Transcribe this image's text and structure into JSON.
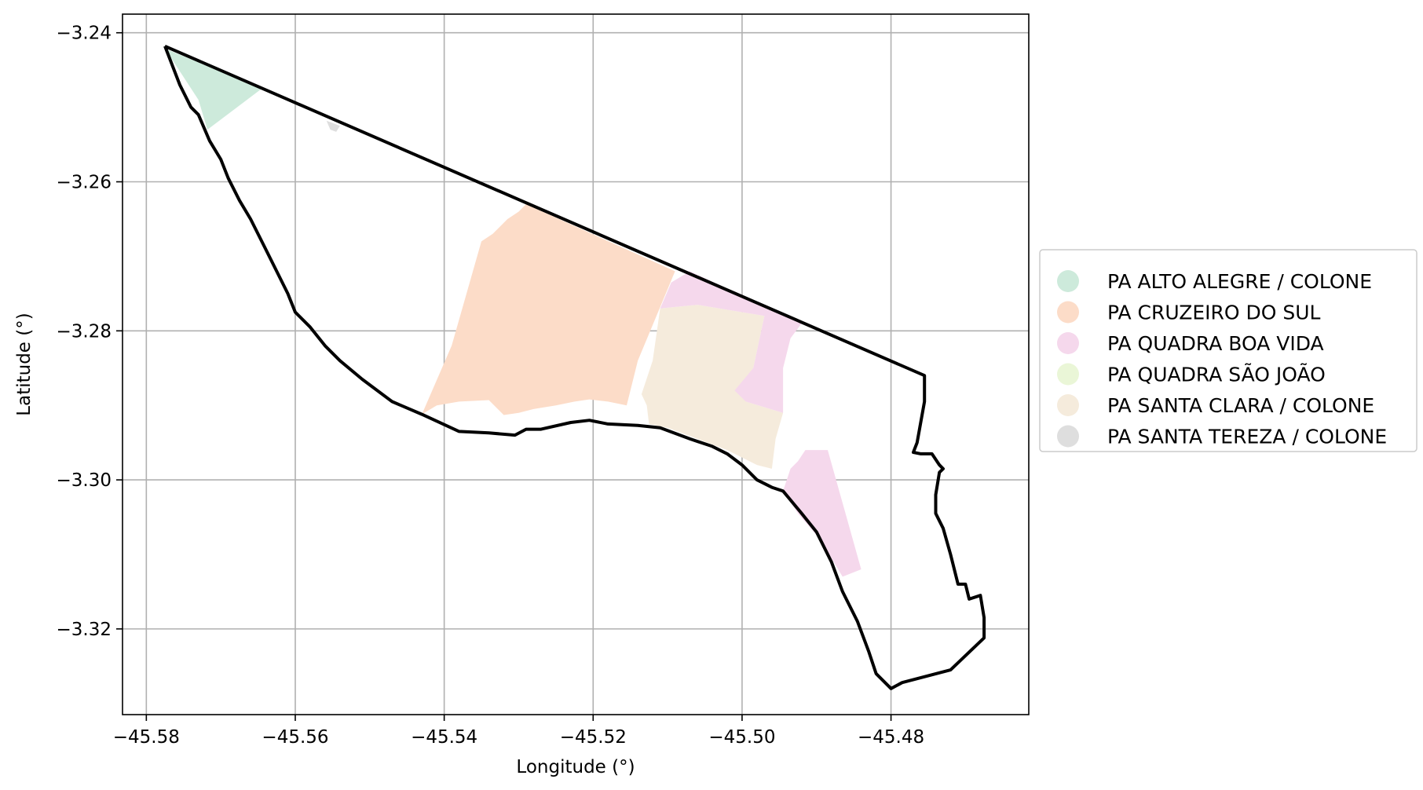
{
  "chart_data": {
    "type": "map",
    "title": "",
    "xlabel": "Longitude (°)",
    "ylabel": "Latitude (°)",
    "xlim": [
      -45.5832,
      -45.4615
    ],
    "ylim": [
      -3.3315,
      -3.2375
    ],
    "xticks": [
      -45.58,
      -45.56,
      -45.54,
      -45.52,
      -45.5,
      -45.48
    ],
    "xtick_labels": [
      "−45.58",
      "−45.56",
      "−45.54",
      "−45.52",
      "−45.50",
      "−45.48"
    ],
    "yticks": [
      -3.24,
      -3.26,
      -3.28,
      -3.3,
      -3.32
    ],
    "ytick_labels": [
      "−3.24",
      "−3.26",
      "−3.28",
      "−3.30",
      "−3.32"
    ],
    "grid": true,
    "legend": {
      "placement": "center-right outside",
      "entries": [
        {
          "name": "PA ALTO ALEGRE / COLONE",
          "color": "#cdeadb"
        },
        {
          "name": "PA CRUZEIRO DO SUL",
          "color": "#fcdcc8"
        },
        {
          "name": "PA QUADRA BOA VIDA",
          "color": "#f5d8ec"
        },
        {
          "name": "PA QUADRA SÃO JOÃO",
          "color": "#eaf6d7"
        },
        {
          "name": "PA SANTA CLARA / COLONE",
          "color": "#f5ebdc"
        },
        {
          "name": "PA SANTA TEREZA / COLONE",
          "color": "#dedede"
        }
      ]
    },
    "regions": [
      {
        "name": "PA ALTO ALEGRE / COLONE",
        "color": "#cdeadb",
        "coords": [
          [
            -45.5775,
            -3.2421
          ],
          [
            -45.5645,
            -3.2475
          ],
          [
            -45.5718,
            -3.253
          ],
          [
            -45.573,
            -3.249
          ]
        ]
      },
      {
        "name": "PA SANTA TEREZA / COLONE",
        "color": "#dedede",
        "coords": [
          [
            -45.5558,
            -3.2518
          ],
          [
            -45.554,
            -3.2525
          ],
          [
            -45.5545,
            -3.2533
          ],
          [
            -45.5553,
            -3.253
          ]
        ]
      },
      {
        "name": "PA CRUZEIRO DO SUL",
        "color": "#fcdcc8",
        "coords": [
          [
            -45.529,
            -3.263
          ],
          [
            -45.509,
            -3.272
          ],
          [
            -45.514,
            -3.284
          ],
          [
            -45.5155,
            -3.29
          ],
          [
            -45.518,
            -3.2895
          ],
          [
            -45.5205,
            -3.2892
          ],
          [
            -45.5225,
            -3.2895
          ],
          [
            -45.525,
            -3.29
          ],
          [
            -45.528,
            -3.2905
          ],
          [
            -45.53,
            -3.291
          ],
          [
            -45.532,
            -3.2913
          ],
          [
            -45.534,
            -3.2893
          ],
          [
            -45.538,
            -3.2895
          ],
          [
            -45.541,
            -3.29
          ],
          [
            -45.543,
            -3.2912
          ],
          [
            -45.539,
            -3.282
          ],
          [
            -45.535,
            -3.268
          ],
          [
            -45.5335,
            -3.267
          ],
          [
            -45.5315,
            -3.265
          ],
          [
            -45.53,
            -3.264
          ]
        ]
      },
      {
        "name": "PA SANTA CLARA / COLONE",
        "color": "#f5ebdc",
        "coords": [
          [
            -45.511,
            -3.277
          ],
          [
            -45.506,
            -3.2765
          ],
          [
            -45.497,
            -3.278
          ],
          [
            -45.4985,
            -3.285
          ],
          [
            -45.4995,
            -3.2895
          ],
          [
            -45.4945,
            -3.291
          ],
          [
            -45.4955,
            -3.2945
          ],
          [
            -45.496,
            -3.2985
          ],
          [
            -45.498,
            -3.298
          ],
          [
            -45.502,
            -3.296
          ],
          [
            -45.506,
            -3.2945
          ],
          [
            -45.51,
            -3.293
          ],
          [
            -45.5125,
            -3.2925
          ],
          [
            -45.5128,
            -3.29
          ],
          [
            -45.5135,
            -3.2885
          ],
          [
            -45.512,
            -3.284
          ]
        ]
      },
      {
        "name": "PA QUADRA BOA VIDA",
        "color": "#f5d8ec",
        "coords": [
          [
            -45.507,
            -3.272
          ],
          [
            -45.492,
            -3.279
          ],
          [
            -45.4935,
            -3.281
          ],
          [
            -45.4945,
            -3.285
          ],
          [
            -45.4945,
            -3.291
          ],
          [
            -45.4995,
            -3.2895
          ],
          [
            -45.501,
            -3.288
          ],
          [
            -45.4985,
            -3.285
          ],
          [
            -45.497,
            -3.278
          ],
          [
            -45.506,
            -3.2765
          ],
          [
            -45.511,
            -3.277
          ],
          [
            -45.5095,
            -3.2735
          ]
        ]
      },
      {
        "name": "PA QUADRA BOA VIDA",
        "color": "#f5d8ec",
        "coords": [
          [
            -45.4915,
            -3.296
          ],
          [
            -45.4885,
            -3.296
          ],
          [
            -45.484,
            -3.312
          ],
          [
            -45.4865,
            -3.313
          ],
          [
            -45.4895,
            -3.308
          ],
          [
            -45.4925,
            -3.3045
          ],
          [
            -45.4945,
            -3.3015
          ],
          [
            -45.4935,
            -3.2985
          ],
          [
            -45.4925,
            -3.2975
          ]
        ]
      }
    ],
    "boundary": {
      "color": "#000000",
      "coords": [
        [
          -45.5775,
          -3.2418
        ],
        [
          -45.5755,
          -3.247
        ],
        [
          -45.574,
          -3.25
        ],
        [
          -45.573,
          -3.251
        ],
        [
          -45.5715,
          -3.2545
        ],
        [
          -45.57,
          -3.257
        ],
        [
          -45.569,
          -3.2595
        ],
        [
          -45.5675,
          -3.2625
        ],
        [
          -45.566,
          -3.265
        ],
        [
          -45.564,
          -3.269
        ],
        [
          -45.5625,
          -3.272
        ],
        [
          -45.561,
          -3.275
        ],
        [
          -45.56,
          -3.2775
        ],
        [
          -45.558,
          -3.2795
        ],
        [
          -45.556,
          -3.282
        ],
        [
          -45.554,
          -3.284
        ],
        [
          -45.551,
          -3.2865
        ],
        [
          -45.547,
          -3.2895
        ],
        [
          -45.543,
          -3.2912
        ],
        [
          -45.538,
          -3.2935
        ],
        [
          -45.534,
          -3.2937
        ],
        [
          -45.5305,
          -3.294
        ],
        [
          -45.529,
          -3.2932
        ],
        [
          -45.527,
          -3.2932
        ],
        [
          -45.523,
          -3.2923
        ],
        [
          -45.5205,
          -3.292
        ],
        [
          -45.518,
          -3.2925
        ],
        [
          -45.514,
          -3.2927
        ],
        [
          -45.511,
          -3.293
        ],
        [
          -45.507,
          -3.2945
        ],
        [
          -45.504,
          -3.2955
        ],
        [
          -45.502,
          -3.2965
        ],
        [
          -45.5,
          -3.298
        ],
        [
          -45.498,
          -3.3
        ],
        [
          -45.496,
          -3.301
        ],
        [
          -45.4945,
          -3.3015
        ],
        [
          -45.492,
          -3.3045
        ],
        [
          -45.49,
          -3.307
        ],
        [
          -45.488,
          -3.311
        ],
        [
          -45.4865,
          -3.315
        ],
        [
          -45.4845,
          -3.319
        ],
        [
          -45.483,
          -3.323
        ],
        [
          -45.482,
          -3.326
        ],
        [
          -45.481,
          -3.327
        ],
        [
          -45.48,
          -3.328
        ],
        [
          -45.4785,
          -3.3272
        ],
        [
          -45.472,
          -3.3255
        ],
        [
          -45.4675,
          -3.3212
        ],
        [
          -45.4675,
          -3.3185
        ],
        [
          -45.468,
          -3.3155
        ],
        [
          -45.4695,
          -3.316
        ],
        [
          -45.47,
          -3.314
        ],
        [
          -45.471,
          -3.314
        ],
        [
          -45.472,
          -3.31
        ],
        [
          -45.473,
          -3.3065
        ],
        [
          -45.474,
          -3.3045
        ],
        [
          -45.474,
          -3.302
        ],
        [
          -45.4735,
          -3.299
        ],
        [
          -45.473,
          -3.2985
        ],
        [
          -45.4735,
          -3.298
        ],
        [
          -45.4745,
          -3.2965
        ],
        [
          -45.476,
          -3.2965
        ],
        [
          -45.477,
          -3.2963
        ],
        [
          -45.4765,
          -3.295
        ],
        [
          -45.4755,
          -3.2895
        ],
        [
          -45.4755,
          -3.2885
        ],
        [
          -45.4755,
          -3.286
        ],
        [
          -45.5775,
          -3.2418
        ]
      ]
    }
  }
}
